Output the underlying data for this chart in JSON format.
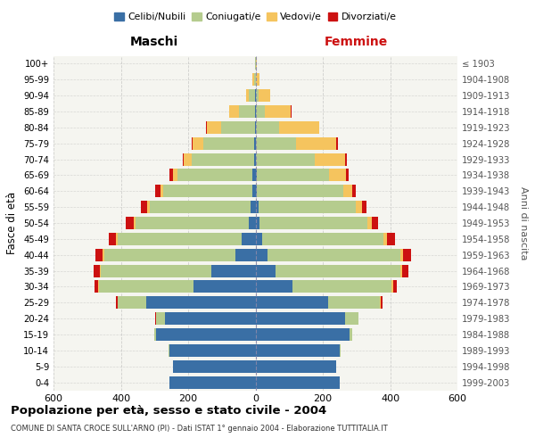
{
  "age_groups": [
    "0-4",
    "5-9",
    "10-14",
    "15-19",
    "20-24",
    "25-29",
    "30-34",
    "35-39",
    "40-44",
    "45-49",
    "50-54",
    "55-59",
    "60-64",
    "65-69",
    "70-74",
    "75-79",
    "80-84",
    "85-89",
    "90-94",
    "95-99",
    "100+"
  ],
  "birth_years": [
    "1999-2003",
    "1994-1998",
    "1989-1993",
    "1984-1988",
    "1979-1983",
    "1974-1978",
    "1969-1973",
    "1964-1968",
    "1959-1963",
    "1954-1958",
    "1949-1953",
    "1944-1948",
    "1939-1943",
    "1934-1938",
    "1929-1933",
    "1924-1928",
    "1919-1923",
    "1914-1918",
    "1909-1913",
    "1904-1908",
    "≤ 1903"
  ],
  "males": {
    "celibi": [
      255,
      245,
      255,
      295,
      270,
      325,
      185,
      130,
      60,
      40,
      20,
      15,
      10,
      8,
      5,
      4,
      2,
      1,
      1,
      0,
      0
    ],
    "coniugati": [
      0,
      0,
      2,
      5,
      25,
      85,
      280,
      330,
      390,
      370,
      335,
      300,
      265,
      225,
      185,
      150,
      100,
      48,
      18,
      5,
      1
    ],
    "vedovi": [
      0,
      0,
      0,
      0,
      0,
      0,
      2,
      3,
      4,
      5,
      6,
      6,
      8,
      12,
      22,
      32,
      42,
      28,
      10,
      3,
      1
    ],
    "divorziati": [
      0,
      0,
      0,
      0,
      2,
      4,
      10,
      18,
      22,
      20,
      25,
      20,
      14,
      10,
      5,
      3,
      2,
      1,
      0,
      0,
      0
    ]
  },
  "females": {
    "nubili": [
      250,
      240,
      250,
      280,
      265,
      215,
      110,
      60,
      35,
      20,
      12,
      8,
      5,
      3,
      2,
      1,
      1,
      1,
      0,
      0,
      0
    ],
    "coniugate": [
      0,
      0,
      2,
      8,
      40,
      155,
      295,
      370,
      395,
      360,
      320,
      290,
      255,
      215,
      175,
      120,
      68,
      26,
      8,
      2,
      1
    ],
    "vedove": [
      0,
      0,
      0,
      0,
      0,
      2,
      4,
      5,
      8,
      10,
      14,
      18,
      28,
      50,
      90,
      120,
      120,
      78,
      35,
      10,
      2
    ],
    "divorziate": [
      0,
      0,
      0,
      0,
      2,
      5,
      10,
      20,
      25,
      25,
      18,
      14,
      10,
      8,
      4,
      3,
      1,
      1,
      0,
      0,
      0
    ]
  },
  "colors": {
    "celibi_nubili": "#3a6fa5",
    "coniugati": "#b5cc8e",
    "vedovi": "#f5c45e",
    "divorziati": "#cc1111"
  },
  "xlim": 600,
  "title": "Popolazione per età, sesso e stato civile - 2004",
  "subtitle": "COMUNE DI SANTA CROCE SULL'ARNO (PI) - Dati ISTAT 1° gennaio 2004 - Elaborazione TUTTITALIA.IT",
  "ylabel_left": "Fasce di età",
  "ylabel_right": "Anni di nascita",
  "xlabel_left": "Maschi",
  "xlabel_right": "Femmine",
  "background_color": "#f5f5f0"
}
